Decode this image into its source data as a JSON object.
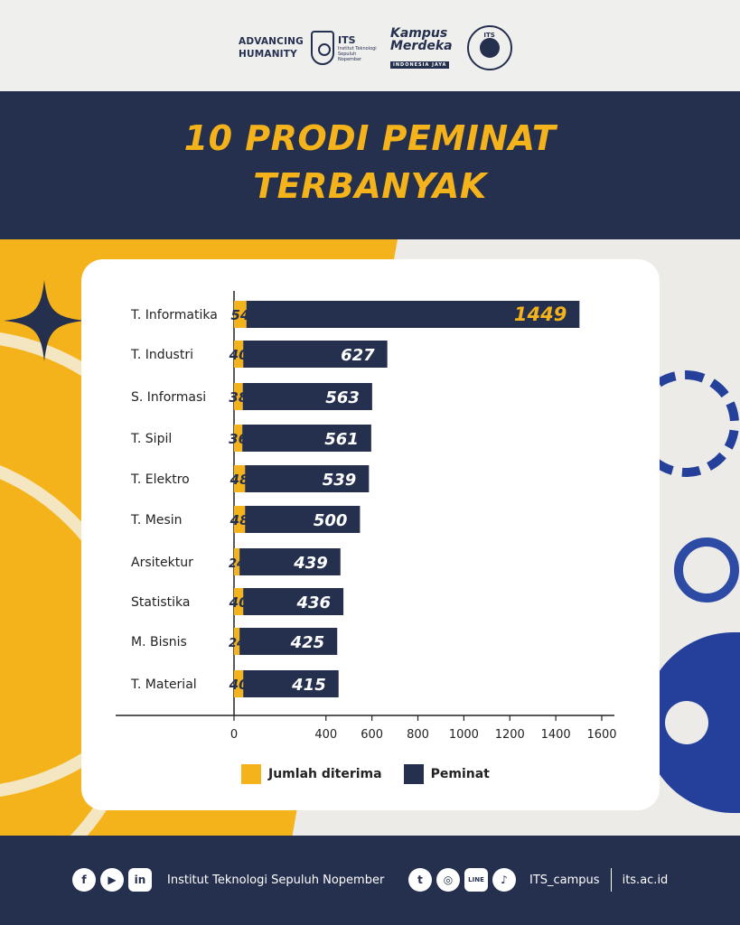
{
  "header": {
    "tagline_line1": "ADVANCING",
    "tagline_line2": "HUMANITY",
    "its_name": "ITS",
    "its_sub": "Institut Teknologi Sepuluh Nopember",
    "kampus_line1": "Kampus",
    "kampus_line2": "Merdeka",
    "kampus_tag": "INDONESIA JAYA",
    "reach_text": "ITS"
  },
  "title": {
    "line1": "10 PRODI PEMINAT",
    "line2": "TERBANYAK"
  },
  "colors": {
    "navy": "#25304f",
    "yellow": "#f5b31b"
  },
  "chart_data": {
    "type": "bar",
    "orientation": "horizontal",
    "stacked": true,
    "categories": [
      "T. Informatika",
      "T. Industri",
      "S. Informasi",
      "T. Sipil",
      "T. Elektro",
      "T. Mesin",
      "Arsitektur",
      "Statistika",
      "M. Bisnis",
      "T. Material"
    ],
    "series": [
      {
        "name": "Jumlah diterima",
        "color": "#f5b31b",
        "values": [
          54,
          40,
          38,
          36,
          48,
          48,
          24,
          40,
          24,
          40
        ]
      },
      {
        "name": "Peminat",
        "color": "#25304f",
        "values": [
          1449,
          627,
          563,
          561,
          539,
          500,
          439,
          436,
          425,
          415
        ]
      }
    ],
    "xticks": [
      0,
      400,
      600,
      800,
      1000,
      1200,
      1400,
      1600
    ],
    "xlim": [
      0,
      1600
    ],
    "legend_position": "bottom"
  },
  "footer": {
    "social_left": [
      "f",
      "▶",
      "in"
    ],
    "institution": "Institut Teknologi Sepuluh Nopember",
    "social_right": [
      "t",
      "◎",
      "LINE",
      "♪"
    ],
    "handle": "ITS_campus",
    "website": "its.ac.id"
  }
}
